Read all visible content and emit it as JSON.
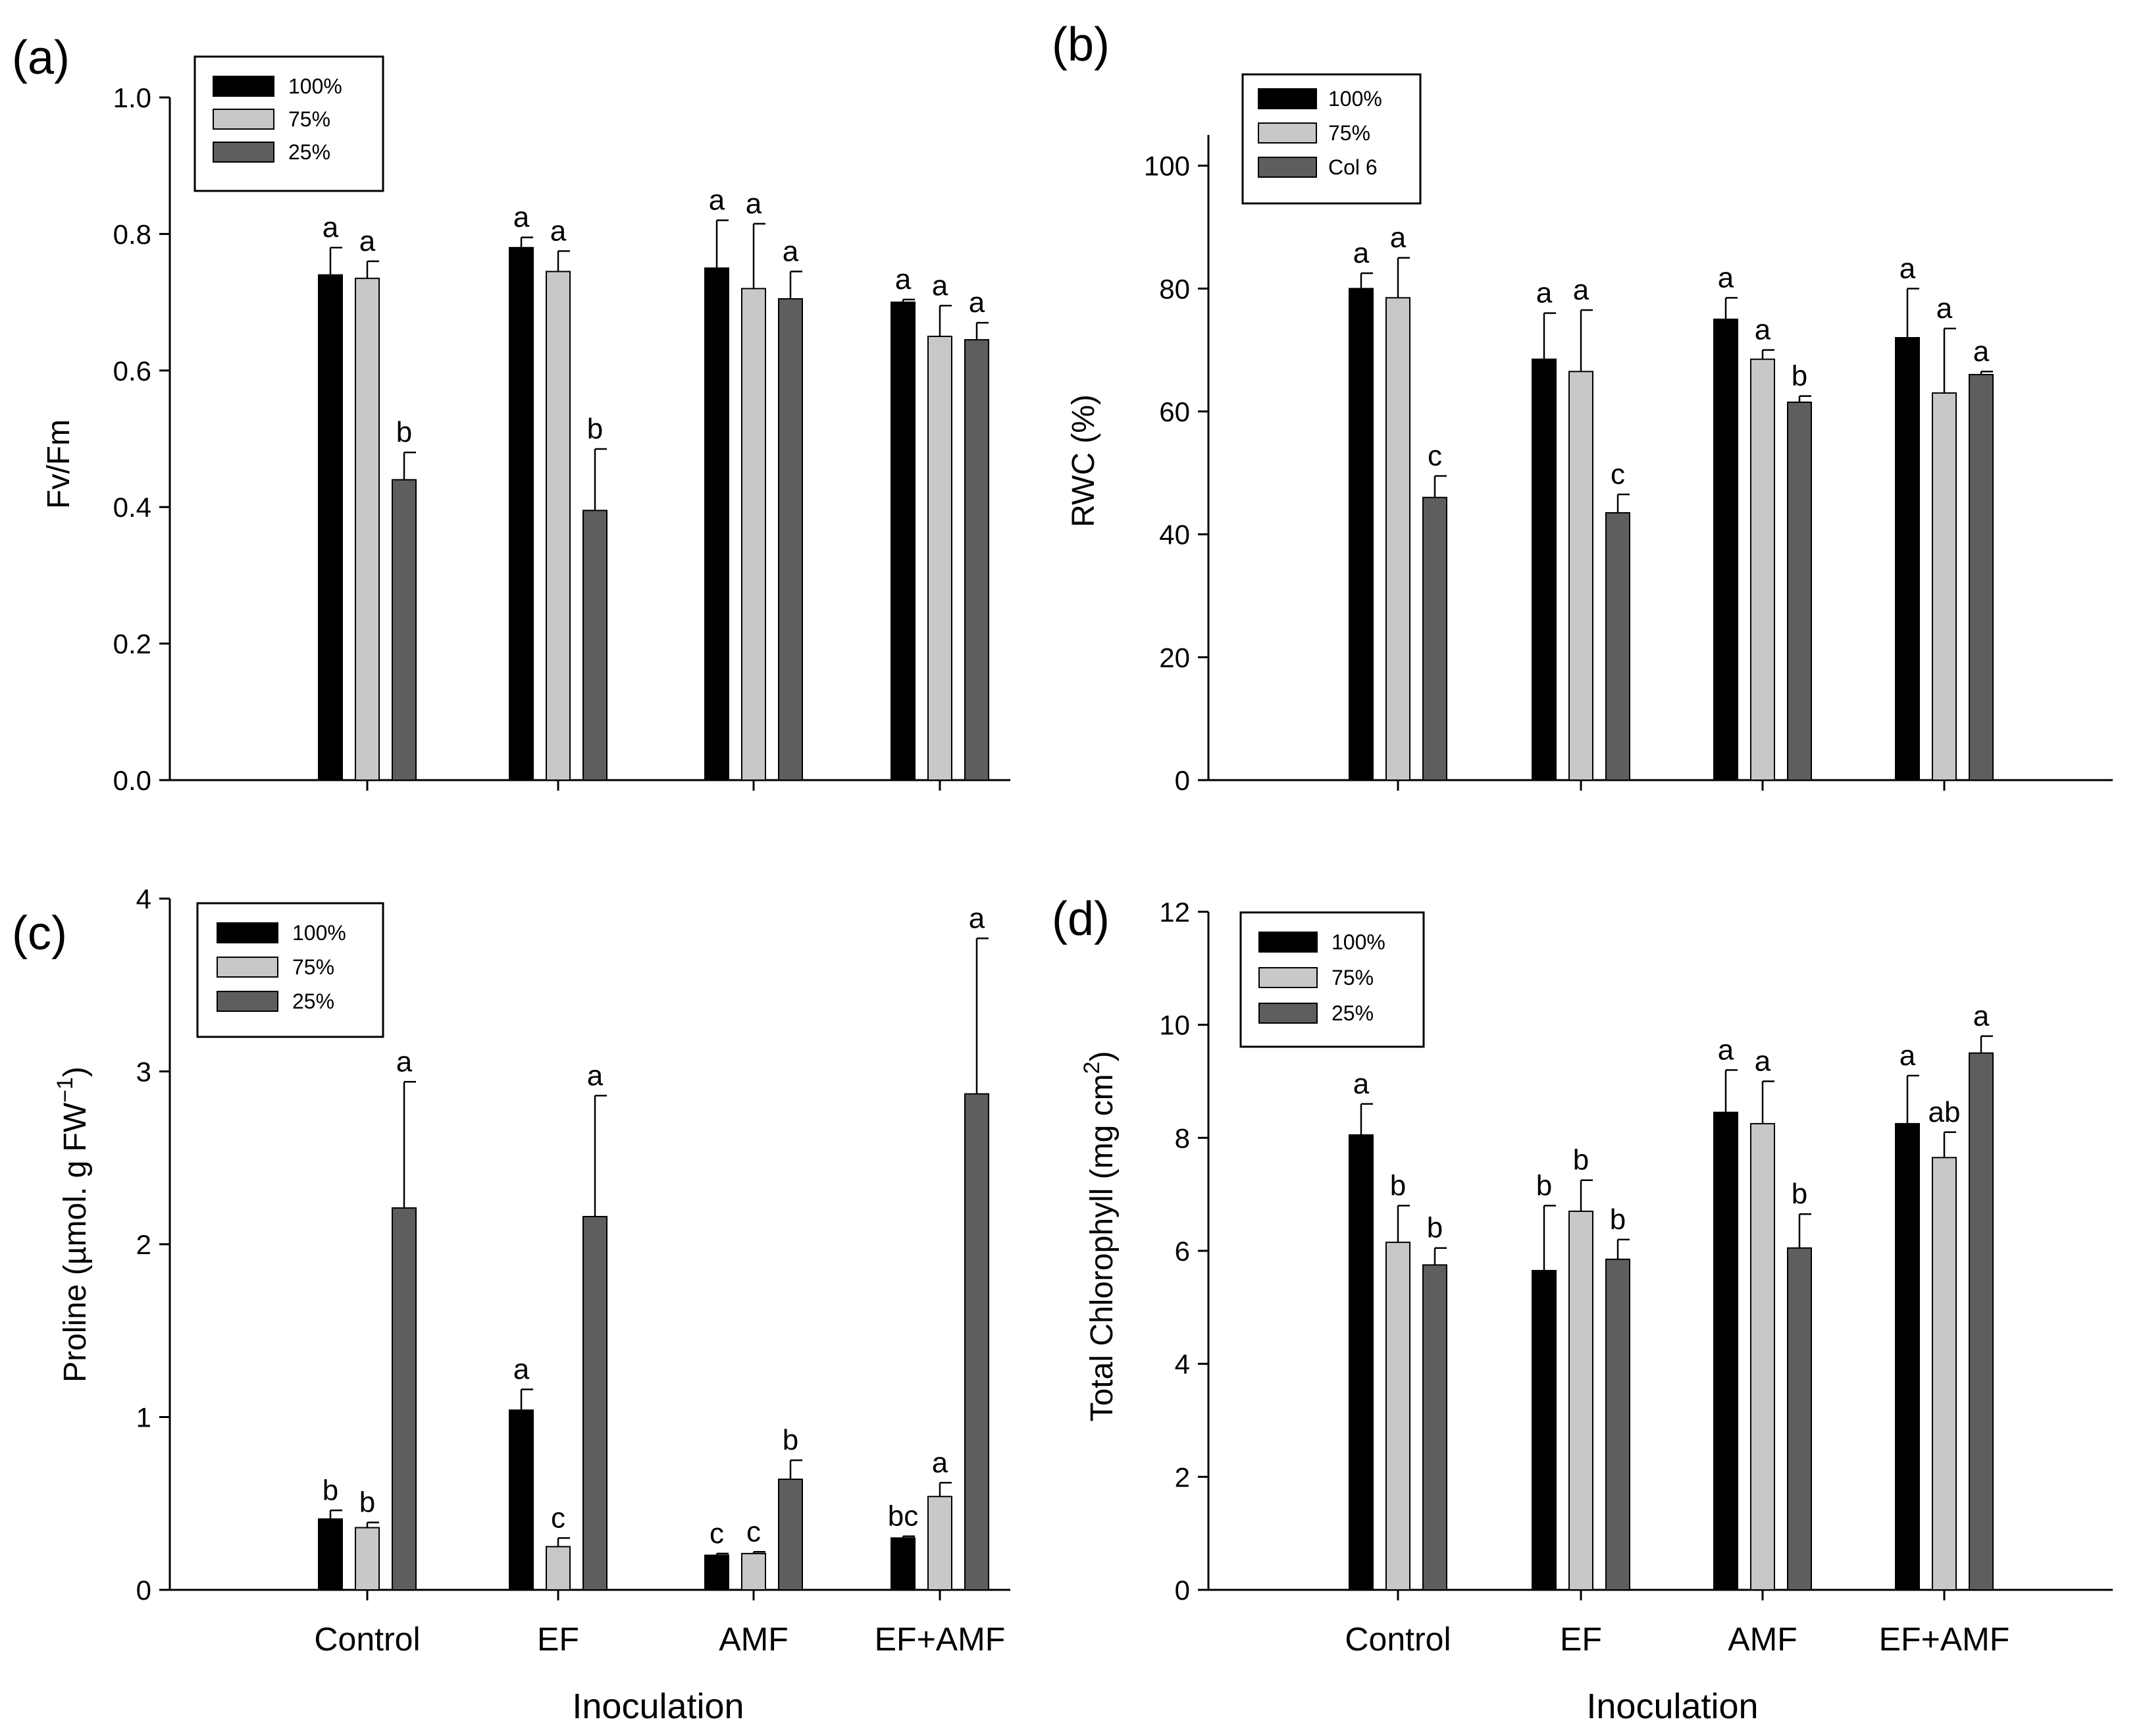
{
  "figure": {
    "background": "#ffffff"
  },
  "colors": {
    "s100": "#000000",
    "s75": "#c8c8c8",
    "s25": "#5e5e5e"
  },
  "chart_data": [
    {
      "id": "a",
      "panel_label": "(a)",
      "type": "bar",
      "categories": [
        "Control",
        "EF",
        "AMF",
        "EF+AMF"
      ],
      "ylabel": "Fv/Fm",
      "xlabel": "",
      "ylim": [
        0,
        1.0
      ],
      "yticks": [
        0,
        0.2,
        0.4,
        0.6,
        0.8,
        1.0
      ],
      "ytick_labels": [
        "0.0",
        "0.2",
        "0.4",
        "0.6",
        "0.8",
        "1.0"
      ],
      "show_category_labels": false,
      "series": [
        {
          "name": "100%",
          "values": [
            0.74,
            0.78,
            0.75,
            0.7
          ],
          "errors": [
            0.04,
            0.015,
            0.07,
            0.004
          ],
          "letters": [
            "a",
            "a",
            "a",
            "a"
          ]
        },
        {
          "name": "75%",
          "values": [
            0.735,
            0.745,
            0.72,
            0.65
          ],
          "errors": [
            0.025,
            0.03,
            0.095,
            0.045
          ],
          "letters": [
            "a",
            "a",
            "a",
            "a"
          ]
        },
        {
          "name": "25%",
          "values": [
            0.44,
            0.395,
            0.705,
            0.645
          ],
          "errors": [
            0.04,
            0.09,
            0.04,
            0.025
          ],
          "letters": [
            "b",
            "b",
            "a",
            "a"
          ]
        }
      ],
      "legend": [
        "100%",
        "75%",
        "25%"
      ]
    },
    {
      "id": "b",
      "panel_label": "(b)",
      "type": "bar",
      "categories": [
        "Control",
        "EF",
        "AMF",
        "EF+AMF"
      ],
      "ylabel": "RWC (%)",
      "xlabel": "",
      "ylim": [
        0,
        105
      ],
      "yticks": [
        0,
        20,
        40,
        60,
        80,
        100
      ],
      "ytick_labels": [
        "0",
        "20",
        "40",
        "60",
        "80",
        "100"
      ],
      "show_category_labels": false,
      "series": [
        {
          "name": "100%",
          "values": [
            80,
            68.5,
            75,
            72
          ],
          "errors": [
            2.5,
            7.5,
            3.5,
            8
          ],
          "letters": [
            "a",
            "a",
            "a",
            "a"
          ]
        },
        {
          "name": "75%",
          "values": [
            78.5,
            66.5,
            68.5,
            63
          ],
          "errors": [
            6.5,
            10,
            1.5,
            10.5
          ],
          "letters": [
            "a",
            "a",
            "a",
            "a"
          ]
        },
        {
          "name": "Col 6",
          "values": [
            46,
            43.5,
            61.5,
            66
          ],
          "errors": [
            3.5,
            3,
            1,
            0.5
          ],
          "letters": [
            "c",
            "c",
            "b",
            "a"
          ]
        }
      ],
      "legend": [
        "100%",
        "75%",
        "Col 6"
      ]
    },
    {
      "id": "c",
      "panel_label": "(c)",
      "type": "bar",
      "categories": [
        "Control",
        "EF",
        "AMF",
        "EF+AMF"
      ],
      "ylabel": "Proline (µmol. g FW",
      "ylabel_sup": "−1",
      "ylabel_end": ")",
      "xlabel": "Inoculation",
      "ylim": [
        0,
        4
      ],
      "yticks": [
        0,
        1,
        2,
        3,
        4
      ],
      "ytick_labels": [
        "0",
        "1",
        "2",
        "3",
        "4"
      ],
      "show_category_labels": true,
      "series": [
        {
          "name": "100%",
          "values": [
            0.41,
            1.04,
            0.2,
            0.3
          ],
          "errors": [
            0.05,
            0.12,
            0.01,
            0.01
          ],
          "letters": [
            "b",
            "a",
            "c",
            "bc"
          ]
        },
        {
          "name": "75%",
          "values": [
            0.36,
            0.25,
            0.21,
            0.54
          ],
          "errors": [
            0.03,
            0.05,
            0.01,
            0.08
          ],
          "letters": [
            "b",
            "c",
            "c",
            "a"
          ]
        },
        {
          "name": "25%",
          "values": [
            2.21,
            2.16,
            0.64,
            2.87
          ],
          "errors": [
            0.73,
            0.7,
            0.11,
            0.9
          ],
          "letters": [
            "a",
            "a",
            "b",
            "a"
          ]
        }
      ],
      "legend": [
        "100%",
        "75%",
        "25%"
      ]
    },
    {
      "id": "d",
      "panel_label": "(d)",
      "type": "bar",
      "categories": [
        "Control",
        "EF",
        "AMF",
        "EF+AMF"
      ],
      "ylabel": "Total Chlorophyll (mg cm",
      "ylabel_sup": "2",
      "ylabel_end": ")",
      "xlabel": "Inoculation",
      "ylim": [
        0,
        12
      ],
      "yticks": [
        0,
        2,
        4,
        6,
        8,
        10,
        12
      ],
      "ytick_labels": [
        "0",
        "2",
        "4",
        "6",
        "8",
        "10",
        "12"
      ],
      "show_category_labels": true,
      "series": [
        {
          "name": "100%",
          "values": [
            8.05,
            5.65,
            8.45,
            8.25
          ],
          "errors": [
            0.55,
            1.15,
            0.75,
            0.85
          ],
          "letters": [
            "a",
            "b",
            "a",
            "a"
          ]
        },
        {
          "name": "75%",
          "values": [
            6.15,
            6.7,
            8.25,
            7.65
          ],
          "errors": [
            0.65,
            0.55,
            0.75,
            0.45
          ],
          "letters": [
            "b",
            "b",
            "a",
            "ab"
          ]
        },
        {
          "name": "25%",
          "values": [
            5.75,
            5.85,
            6.05,
            9.5
          ],
          "errors": [
            0.3,
            0.35,
            0.6,
            0.3
          ],
          "letters": [
            "b",
            "b",
            "b",
            "a"
          ]
        }
      ],
      "legend": [
        "100%",
        "75%",
        "25%"
      ]
    }
  ]
}
